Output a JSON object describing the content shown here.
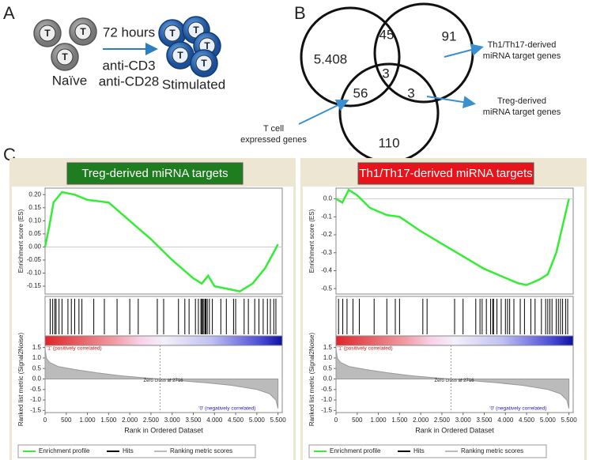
{
  "panel_a": {
    "label": "A",
    "cell_label": "T",
    "time": "72 hours",
    "stimuli": [
      "anti-CD3",
      "anti-CD28"
    ],
    "naive": "Naïve",
    "stimulated": "Stimulated"
  },
  "panel_b": {
    "label": "B",
    "regions": [
      "5.408",
      "45",
      "91",
      "3",
      "56",
      "3",
      "110"
    ],
    "t_cell": [
      "T cell",
      "expressed genes"
    ],
    "th": [
      "Th1/Th17-derived",
      "miRNA target genes"
    ],
    "treg": [
      "Treg-derived",
      "miRNA target genes"
    ]
  },
  "panel_c": {
    "label": "C"
  },
  "chart_data": [
    {
      "type": "line",
      "title": "Treg-derived miRNA targets",
      "title_color": "#1e7d1e",
      "color": "#33ee33",
      "ylabel": "Enrichment score (ES)",
      "xlabel": "Rank in Ordered Dataset",
      "x": [
        0,
        100,
        200,
        400,
        700,
        1000,
        1500,
        2000,
        2500,
        3000,
        3500,
        3700,
        3850,
        4000,
        4300,
        4600,
        4900,
        5200,
        5400,
        5500
      ],
      "values": [
        0,
        0.08,
        0.17,
        0.21,
        0.2,
        0.18,
        0.17,
        0.1,
        0.03,
        -0.05,
        -0.12,
        -0.14,
        -0.11,
        -0.15,
        -0.16,
        -0.17,
        -0.14,
        -0.08,
        -0.02,
        0.01
      ],
      "ylim": [
        -0.18,
        0.225
      ],
      "yticks": [
        {
          "value": 0.2,
          "label": "0.20"
        },
        0.15,
        {
          "value": 0.1,
          "label": "0.10"
        },
        0.05,
        {
          "value": 0,
          "label": "0.00"
        },
        -0.05,
        {
          "value": -0.1,
          "label": "-0.10"
        },
        -0.15
      ],
      "xlim": [
        0,
        5600
      ],
      "xticks": [
        0,
        500,
        {
          "value": 1000,
          "label": "1.000"
        },
        {
          "value": 1500,
          "label": "1.500"
        },
        {
          "value": 2000,
          "label": "2.000"
        },
        {
          "value": 2500,
          "label": "2.500"
        },
        {
          "value": 3000,
          "label": "3.000"
        },
        {
          "value": 3500,
          "label": "3.500"
        },
        {
          "value": 4000,
          "label": "4.000"
        },
        {
          "value": 4500,
          "label": "4.500"
        },
        {
          "value": 5000,
          "label": "5.000"
        },
        {
          "value": 5500,
          "label": "5.500"
        }
      ],
      "hits": [
        120,
        180,
        230,
        260,
        330,
        400,
        540,
        620,
        700,
        800,
        870,
        1150,
        1400,
        1700,
        2000,
        2200,
        2650,
        2800,
        3150,
        3300,
        3400,
        3550,
        3620,
        3680,
        3700,
        3720,
        3750,
        3780,
        3800,
        3830,
        3880,
        3950,
        4150,
        4280,
        4450,
        4500,
        4700,
        4800,
        4950,
        5050,
        5150,
        5250,
        5320,
        5400,
        5450
      ],
      "metric": {
        "ylabel": "Ranked list metric (Signal2Noise)",
        "ylim": [
          -1.6,
          1.6
        ],
        "yticks": [
          1.5,
          {
            "value": 1,
            "label": "1.0"
          },
          0.5,
          {
            "value": 0,
            "label": "0.0"
          },
          -0.5,
          {
            "value": -1,
            "label": "-1.0"
          },
          -1.5
        ],
        "x": [
          0,
          30,
          100,
          300,
          700,
          1200,
          1800,
          2400,
          2716,
          3200,
          3800,
          4400,
          5000,
          5300,
          5450,
          5500
        ],
        "values": [
          1.45,
          1.0,
          0.8,
          0.6,
          0.45,
          0.3,
          0.15,
          0.05,
          0,
          -0.08,
          -0.18,
          -0.3,
          -0.5,
          -0.7,
          -1.0,
          -1.4
        ]
      },
      "pos_label": "'1' (positively correlated)",
      "neg_label": "'0' (negatively correlated)",
      "zero_cross": 2716,
      "zero_cross_text": "Zero cross at 2716",
      "legend": [
        "Enrichment profile",
        "Hits",
        "Ranking metric scores"
      ]
    },
    {
      "type": "line",
      "title": "Th1/Th17-derived miRNA targets",
      "title_color": "#e8141c",
      "color": "#33ee33",
      "ylabel": "Enrichment score (ES)",
      "xlabel": "Rank in Ordered Dataset",
      "x": [
        0,
        150,
        300,
        500,
        800,
        1200,
        1500,
        2000,
        2500,
        3000,
        3500,
        4000,
        4300,
        4500,
        4800,
        5000,
        5200,
        5400,
        5500
      ],
      "values": [
        0,
        -0.02,
        0.05,
        0.02,
        -0.05,
        -0.09,
        -0.1,
        -0.18,
        -0.25,
        -0.32,
        -0.39,
        -0.44,
        -0.47,
        -0.48,
        -0.45,
        -0.42,
        -0.3,
        -0.1,
        0
      ],
      "ylim": [
        -0.53,
        0.06
      ],
      "yticks": [
        {
          "value": 0,
          "label": "0.0"
        },
        -0.1,
        -0.2,
        -0.3,
        -0.4,
        -0.5
      ],
      "xlim": [
        0,
        5600
      ],
      "xticks": [
        0,
        500,
        {
          "value": 1000,
          "label": "1.000"
        },
        {
          "value": 1500,
          "label": "1.500"
        },
        {
          "value": 2000,
          "label": "2.000"
        },
        {
          "value": 2500,
          "label": "2.500"
        },
        {
          "value": 3000,
          "label": "3.000"
        },
        {
          "value": 3500,
          "label": "3.500"
        },
        {
          "value": 4000,
          "label": "4.000"
        },
        {
          "value": 4500,
          "label": "4.500"
        },
        {
          "value": 5000,
          "label": "5.000"
        },
        {
          "value": 5500,
          "label": "5.500"
        }
      ],
      "hits": [
        60,
        160,
        260,
        400,
        550,
        900,
        1200,
        1400,
        1500,
        2050,
        2150,
        2800,
        3000,
        3300,
        3400,
        3450,
        3550,
        3650,
        3700,
        3720,
        3800,
        3900,
        4000,
        4050,
        4100,
        4200,
        4350,
        4450,
        4600,
        4700,
        4850,
        4950,
        5000,
        5050,
        5100,
        5200,
        5250,
        5300,
        5350,
        5420,
        5470
      ],
      "metric": {
        "ylabel": "Ranked list metric (Signal2Noise)",
        "ylim": [
          -1.6,
          1.6
        ],
        "yticks": [
          1.5,
          {
            "value": 1,
            "label": "1.0"
          },
          0.5,
          {
            "value": 0,
            "label": "0.0"
          },
          -0.5,
          {
            "value": -1,
            "label": "-1.0"
          },
          -1.5
        ],
        "x": [
          0,
          30,
          100,
          300,
          700,
          1200,
          1800,
          2400,
          2716,
          3200,
          3800,
          4400,
          5000,
          5300,
          5450,
          5500
        ],
        "values": [
          1.45,
          1.0,
          0.8,
          0.6,
          0.45,
          0.3,
          0.15,
          0.05,
          0,
          -0.08,
          -0.18,
          -0.3,
          -0.5,
          -0.7,
          -1.0,
          -1.4
        ]
      },
      "pos_label": "'1' (positively correlated)",
      "neg_label": "'0' (negatively correlated)",
      "zero_cross": 2716,
      "zero_cross_text": "Zero cross at 2716",
      "legend": [
        "Enrichment profile",
        "Hits",
        "Ranking metric scores"
      ]
    }
  ]
}
